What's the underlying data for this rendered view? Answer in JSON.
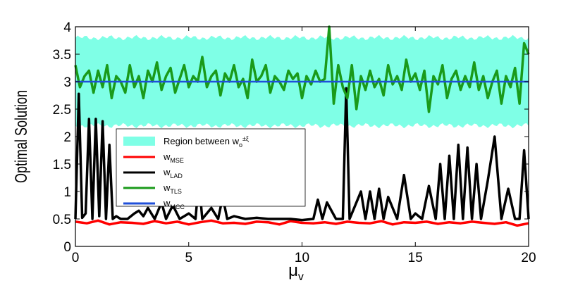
{
  "chart_data": {
    "type": "line",
    "title": "",
    "xlabel": "μ",
    "xlabel_subscript": "v",
    "ylabel": "Optimal Solution",
    "xlim": [
      0,
      20
    ],
    "ylim": [
      0,
      4
    ],
    "xticks": [
      0,
      5,
      10,
      15,
      20
    ],
    "xtick_labels": [
      "0",
      "5",
      "10",
      "15",
      "20"
    ],
    "yticks": [
      0,
      0.5,
      1,
      1.5,
      2,
      2.5,
      3,
      3.5,
      4
    ],
    "ytick_labels": [
      "0",
      "0.5",
      "1",
      "1.5",
      "2",
      "2.5",
      "3",
      "3.5",
      "4"
    ],
    "region": {
      "name": "Region between w",
      "name_subscript": "o",
      "name_suffix": "±ξ",
      "lower": 2.2,
      "upper": 3.8,
      "color": "#7fffe6"
    },
    "series": [
      {
        "name": "w",
        "subscript": "MSE",
        "color": "#ff0000",
        "x": [
          0,
          0.5,
          1,
          1.5,
          2,
          2.5,
          3,
          3.5,
          4,
          4.5,
          5,
          5.5,
          6,
          6.5,
          7,
          7.5,
          8,
          8.5,
          9,
          9.5,
          10,
          10.5,
          11,
          11.5,
          12,
          12.5,
          13,
          13.5,
          14,
          14.5,
          15,
          15.5,
          16,
          16.5,
          17,
          17.5,
          18,
          18.5,
          19,
          19.5,
          20
        ],
        "y": [
          0.45,
          0.42,
          0.47,
          0.4,
          0.44,
          0.43,
          0.41,
          0.46,
          0.42,
          0.45,
          0.4,
          0.44,
          0.47,
          0.42,
          0.43,
          0.41,
          0.45,
          0.44,
          0.4,
          0.46,
          0.43,
          0.42,
          0.44,
          0.41,
          0.45,
          0.43,
          0.42,
          0.46,
          0.4,
          0.44,
          0.43,
          0.45,
          0.41,
          0.44,
          0.42,
          0.45,
          0.43,
          0.41,
          0.44,
          0.38,
          0.42
        ]
      },
      {
        "name": "w",
        "subscript": "LAD",
        "color": "#000000",
        "x": [
          0,
          0.15,
          0.3,
          0.45,
          0.6,
          0.75,
          0.9,
          1.05,
          1.2,
          1.35,
          1.5,
          1.65,
          1.8,
          2,
          2.3,
          2.6,
          2.8,
          3.0,
          3.2,
          3.5,
          3.8,
          4.0,
          4.3,
          4.6,
          5.0,
          5.3,
          5.45,
          5.6,
          6.0,
          6.3,
          6.5,
          6.7,
          7.0,
          7.5,
          8.0,
          8.5,
          9.0,
          9.5,
          10.0,
          10.5,
          10.7,
          10.9,
          11.1,
          11.5,
          11.8,
          11.95,
          12.1,
          12.4,
          12.6,
          12.8,
          13.0,
          13.2,
          13.4,
          13.6,
          13.8,
          14.2,
          14.5,
          14.8,
          15.0,
          15.3,
          15.6,
          15.9,
          16.1,
          16.3,
          16.5,
          16.7,
          16.9,
          17.1,
          17.3,
          17.5,
          17.7,
          17.9,
          18.2,
          18.5,
          18.8,
          19.1,
          19.4,
          19.6,
          19.8,
          20
        ],
        "y": [
          0.5,
          2.78,
          0.52,
          0.6,
          2.32,
          0.5,
          2.32,
          0.55,
          2.28,
          0.5,
          1.85,
          0.5,
          0.55,
          0.5,
          0.5,
          0.6,
          0.65,
          0.55,
          0.7,
          0.5,
          0.8,
          0.5,
          0.75,
          0.5,
          0.6,
          0.5,
          1.2,
          0.5,
          0.7,
          0.5,
          0.9,
          0.5,
          0.55,
          0.5,
          0.52,
          0.5,
          0.5,
          0.5,
          0.48,
          0.5,
          0.85,
          0.5,
          0.8,
          0.5,
          0.5,
          2.88,
          0.5,
          0.8,
          1.0,
          0.5,
          1.0,
          0.5,
          1.05,
          0.5,
          0.9,
          0.5,
          1.3,
          0.5,
          0.6,
          0.5,
          1.1,
          0.5,
          1.5,
          0.5,
          1.65,
          0.5,
          1.85,
          0.5,
          1.8,
          0.5,
          1.5,
          0.5,
          1.2,
          2.0,
          0.5,
          1.05,
          0.5,
          0.5,
          1.75,
          0.5
        ]
      },
      {
        "name": "w",
        "subscript": "TLS",
        "color": "#1a9a1a",
        "x": [
          0,
          0.2,
          0.4,
          0.6,
          0.8,
          1,
          1.2,
          1.4,
          1.6,
          1.8,
          2,
          2.2,
          2.4,
          2.6,
          2.8,
          3,
          3.2,
          3.4,
          3.6,
          3.8,
          4,
          4.2,
          4.4,
          4.6,
          4.8,
          5,
          5.2,
          5.4,
          5.6,
          5.8,
          6,
          6.2,
          6.4,
          6.6,
          6.8,
          7,
          7.2,
          7.4,
          7.6,
          7.8,
          8,
          8.2,
          8.4,
          8.6,
          8.8,
          9,
          9.2,
          9.4,
          9.6,
          9.8,
          10,
          10.2,
          10.4,
          10.6,
          10.8,
          11,
          11.2,
          11.4,
          11.6,
          11.8,
          12,
          12.2,
          12.4,
          12.6,
          12.8,
          13,
          13.2,
          13.4,
          13.6,
          13.8,
          14,
          14.2,
          14.4,
          14.6,
          14.8,
          15,
          15.2,
          15.4,
          15.6,
          15.8,
          16,
          16.2,
          16.4,
          16.6,
          16.8,
          17,
          17.2,
          17.4,
          17.6,
          17.8,
          18,
          18.2,
          18.4,
          18.6,
          18.8,
          19,
          19.2,
          19.4,
          19.6,
          19.8,
          20
        ],
        "y": [
          3.3,
          2.9,
          3.1,
          3.2,
          2.8,
          3.2,
          2.9,
          3.3,
          2.7,
          3.1,
          3.0,
          2.8,
          3.3,
          2.9,
          3.1,
          2.7,
          3.2,
          3.0,
          3.35,
          2.85,
          3.1,
          3.25,
          2.8,
          3.05,
          3.3,
          2.9,
          3.1,
          3.0,
          3.45,
          2.9,
          3.1,
          3.2,
          2.75,
          3.15,
          3.0,
          3.3,
          2.9,
          3.05,
          2.7,
          3.4,
          3.0,
          3.1,
          3.3,
          2.8,
          3.1,
          3.0,
          2.85,
          3.2,
          3.05,
          3.15,
          2.7,
          3.1,
          2.95,
          3.2,
          3.0,
          3.05,
          4.0,
          2.6,
          3.3,
          2.9,
          2.7,
          3.3,
          2.5,
          3.1,
          2.85,
          3.2,
          2.9,
          3.05,
          2.75,
          3.3,
          2.95,
          3.1,
          2.85,
          3.4,
          3.0,
          3.15,
          2.85,
          3.2,
          2.45,
          3.1,
          2.95,
          3.3,
          2.7,
          3.05,
          3.2,
          2.85,
          3.1,
          2.9,
          3.35,
          2.85,
          3.1,
          2.7,
          3.0,
          3.2,
          2.6,
          3.1,
          2.9,
          3.25,
          2.6,
          3.7,
          3.5
        ]
      },
      {
        "name": "w",
        "subscript": "MCC",
        "color": "#1f4fd9",
        "x": [
          0,
          20
        ],
        "y": [
          3.0,
          3.0
        ]
      }
    ],
    "legend": {
      "position": "center-left",
      "entries": [
        {
          "label": "Region between w",
          "subscript": "o",
          "suffix": "±ξ",
          "color": "#7fffe6",
          "kind": "area"
        },
        {
          "label": "w",
          "subscript": "MSE",
          "color": "#ff0000",
          "kind": "line"
        },
        {
          "label": "w",
          "subscript": "LAD",
          "color": "#000000",
          "kind": "line"
        },
        {
          "label": "w",
          "subscript": "TLS",
          "color": "#1a9a1a",
          "kind": "line"
        },
        {
          "label": "w",
          "subscript": "MCC",
          "color": "#1f4fd9",
          "kind": "line"
        }
      ]
    }
  }
}
